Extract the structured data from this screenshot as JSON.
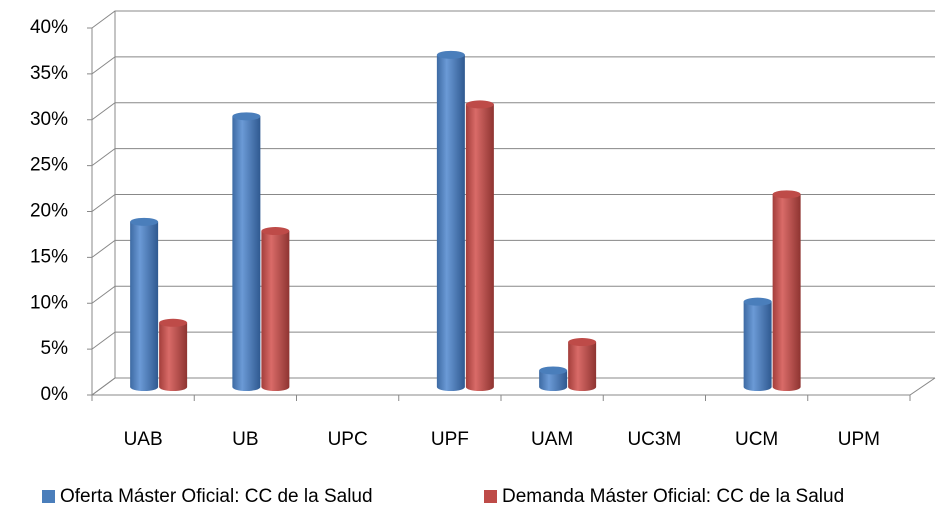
{
  "chart_data": {
    "type": "bar",
    "categories": [
      "UAB",
      "UB",
      "UPC",
      "UPF",
      "UAM",
      "UC3M",
      "UCM",
      "UPM"
    ],
    "series": [
      {
        "name": "Oferta Máster Oficial: CC de la Salud",
        "color": "#4a7ebb",
        "values": [
          18,
          29.5,
          null,
          36.2,
          1.8,
          null,
          9.3,
          null
        ]
      },
      {
        "name": "Demanda Máster Oficial: CC de la Salud",
        "color": "#be4b48",
        "values": [
          7,
          17,
          null,
          30.8,
          4.9,
          null,
          21,
          null
        ]
      }
    ],
    "ylim": [
      0,
      40
    ],
    "yticks": [
      {
        "value": 0,
        "label": "0%"
      },
      {
        "value": 5,
        "label": "5%"
      },
      {
        "value": 10,
        "label": "10%"
      },
      {
        "value": 15,
        "label": "15%"
      },
      {
        "value": 20,
        "label": "20%"
      },
      {
        "value": 25,
        "label": "25%"
      },
      {
        "value": 30,
        "label": "30%"
      },
      {
        "value": 35,
        "label": "35%"
      },
      {
        "value": 40,
        "label": "40%"
      }
    ],
    "grid": true,
    "legend": "bottom"
  }
}
